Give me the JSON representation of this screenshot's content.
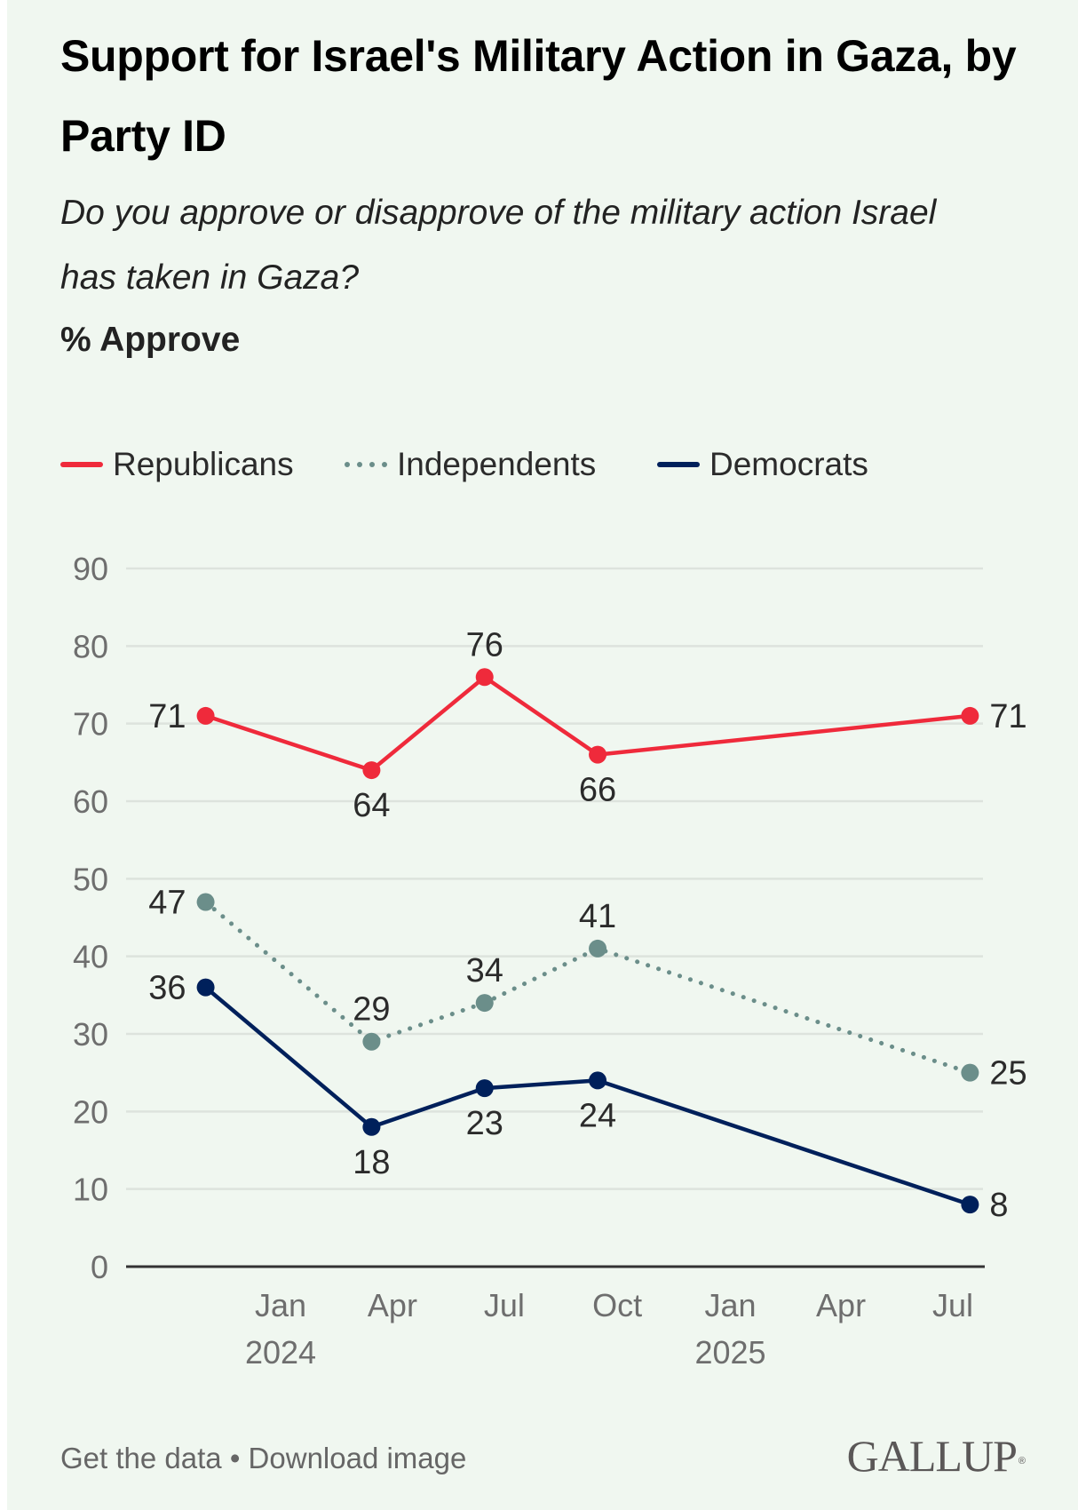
{
  "header": {
    "title": "Support for Israel's Military Action in Gaza, by Party ID",
    "subtitle": "Do you approve or disapprove of the military action Israel has taken in Gaza?",
    "unit_label": "% Approve"
  },
  "legend": [
    {
      "label": "Republicans",
      "color": "#ef2a3b",
      "style": "solid"
    },
    {
      "label": "Independents",
      "color": "#6b8e8a",
      "style": "dotted"
    },
    {
      "label": "Democrats",
      "color": "#00205b",
      "style": "solid"
    }
  ],
  "footer": {
    "get_data": "Get the data",
    "separator": "•",
    "download": "Download image",
    "logo": "GALLUP",
    "logo_mark": "®"
  },
  "chart_data": {
    "type": "line",
    "title": "Support for Israel's Military Action in Gaza, by Party ID",
    "subtitle": "Do you approve or disapprove of the military action Israel has taken in Gaza?",
    "ylabel": "% Approve",
    "xlabel": "",
    "ylim": [
      0,
      90
    ],
    "yticks": [
      0,
      10,
      20,
      30,
      40,
      50,
      60,
      70,
      80,
      90
    ],
    "grid": true,
    "legend_position": "top-left",
    "x_axis_range": [
      "2023-10-01",
      "2025-07-31"
    ],
    "x_ticks": [
      {
        "label": "Jan",
        "year": "2024",
        "date": "2024-01-01"
      },
      {
        "label": "Apr",
        "year": "",
        "date": "2024-04-01"
      },
      {
        "label": "Jul",
        "year": "",
        "date": "2024-07-01"
      },
      {
        "label": "Oct",
        "year": "",
        "date": "2024-10-01"
      },
      {
        "label": "Jan",
        "year": "2025",
        "date": "2025-01-01"
      },
      {
        "label": "Apr",
        "year": "",
        "date": "2025-04-01"
      },
      {
        "label": "Jul",
        "year": "",
        "date": "2025-07-01"
      }
    ],
    "x": [
      "2023-11-01",
      "2024-03-15",
      "2024-06-15",
      "2024-09-15",
      "2025-07-15"
    ],
    "series": [
      {
        "name": "Republicans",
        "color": "#ef2a3b",
        "style": "solid",
        "values": [
          71,
          64,
          76,
          66,
          71
        ],
        "label_pos": [
          "left",
          "below",
          "above",
          "below",
          "right"
        ]
      },
      {
        "name": "Independents",
        "color": "#6b8e8a",
        "style": "dotted",
        "values": [
          47,
          29,
          34,
          41,
          25
        ],
        "label_pos": [
          "left",
          "above",
          "above",
          "above",
          "right"
        ]
      },
      {
        "name": "Democrats",
        "color": "#00205b",
        "style": "solid",
        "values": [
          36,
          18,
          23,
          24,
          8
        ],
        "label_pos": [
          "left",
          "below",
          "below",
          "below",
          "right"
        ]
      }
    ]
  }
}
